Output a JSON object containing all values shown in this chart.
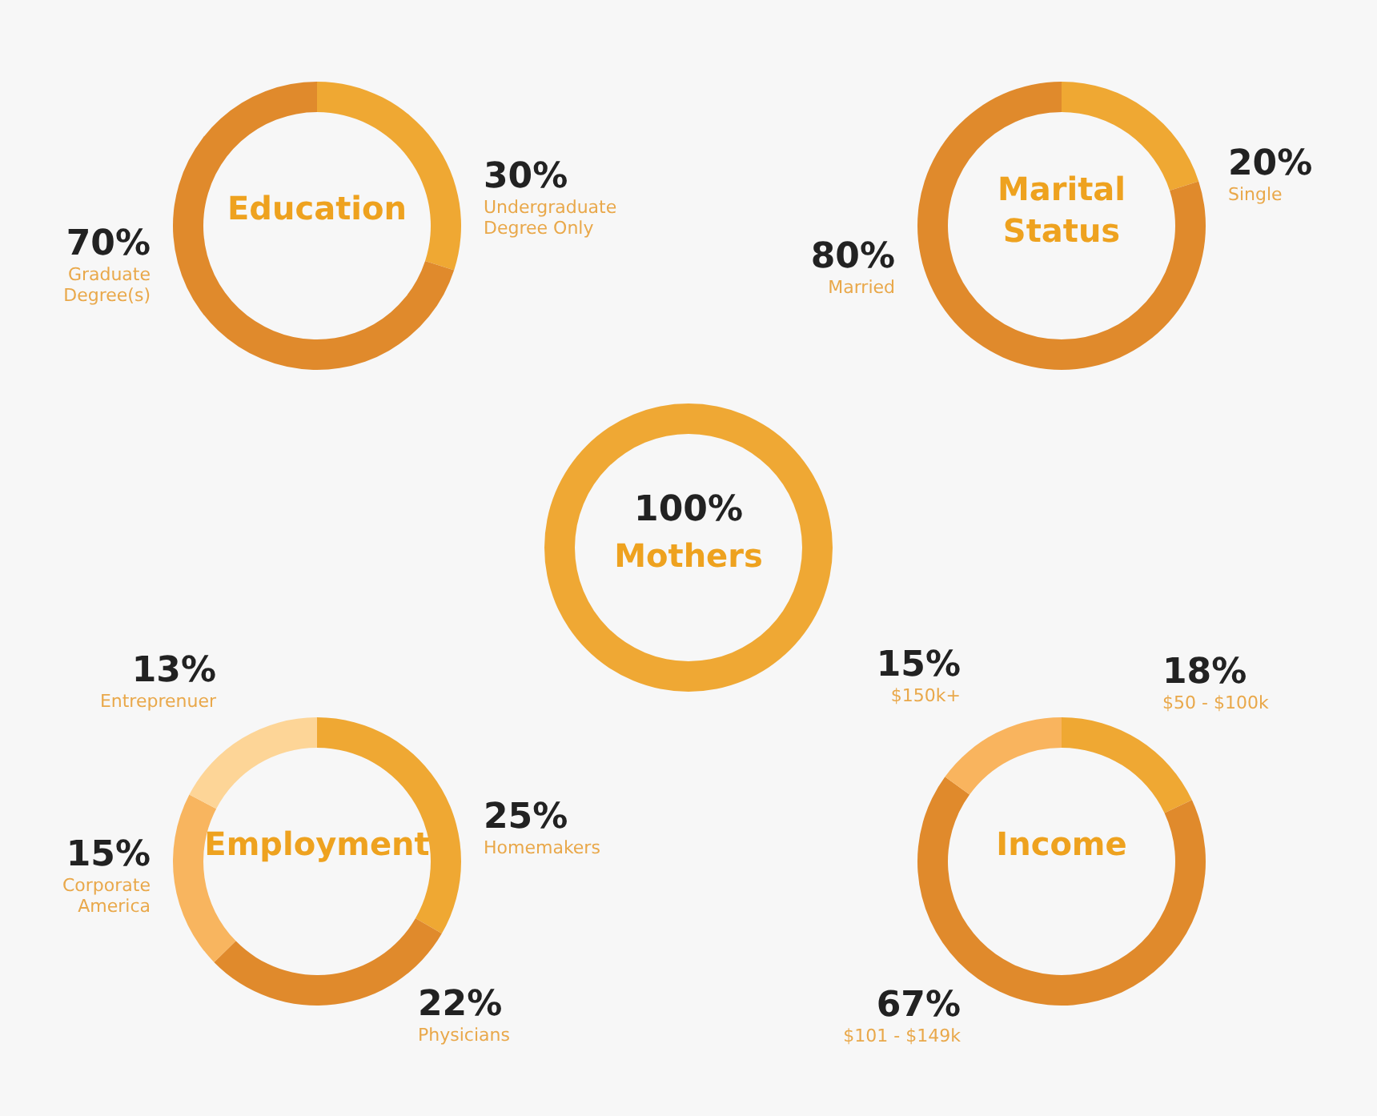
{
  "chart_data": [
    {
      "type": "donut",
      "title": "Education",
      "categories": [
        "Undergraduate Degree Only",
        "Graduate Degree(s)"
      ],
      "values": [
        30,
        70
      ],
      "value_labels": [
        "30%",
        "70%"
      ],
      "colors": [
        "#efa833",
        "#e08a2c"
      ]
    },
    {
      "type": "donut",
      "title": "Marital Status",
      "categories": [
        "Single",
        "Married"
      ],
      "values": [
        20,
        80
      ],
      "value_labels": [
        "20%",
        "80%"
      ],
      "colors": [
        "#efa833",
        "#e08a2c"
      ]
    },
    {
      "type": "donut",
      "title": "Mothers",
      "categories": [
        null
      ],
      "values": [
        100
      ],
      "value_labels": [
        "100%"
      ],
      "colors": [
        "#efa834"
      ]
    },
    {
      "type": "donut",
      "title": "Employment",
      "categories": [
        "Homemakers",
        "Physicians",
        "Corporate America",
        "Entreprenuer"
      ],
      "values": [
        25,
        22,
        15,
        13
      ],
      "value_labels": [
        "25%",
        "22%",
        "15%",
        "13%"
      ],
      "colors": [
        "#efa833",
        "#e08a2c",
        "#f8b55f",
        "#fdd597"
      ]
    },
    {
      "type": "donut",
      "title": "Income",
      "categories": [
        "$50 - $100k",
        "$101 - $149k",
        "$150k+"
      ],
      "values": [
        18,
        67,
        15
      ],
      "value_labels": [
        "18%",
        "67%",
        "15%"
      ],
      "colors": [
        "#efa833",
        "#e08a2c",
        "#f9b45e"
      ]
    }
  ]
}
